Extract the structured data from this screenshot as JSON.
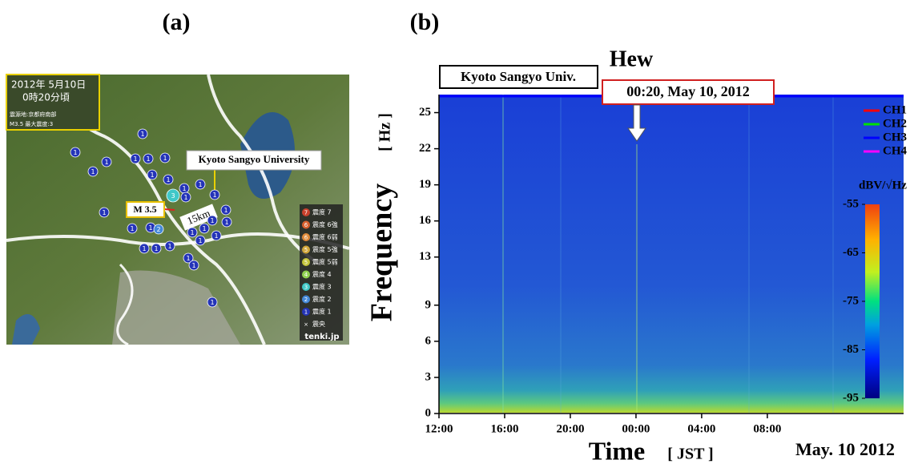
{
  "panels": {
    "a": "(a)",
    "b": "(b)"
  },
  "map": {
    "date_lines": [
      "2012年 5月10日",
      "0時20分頃"
    ],
    "info_lines": [
      "震源地:京都府南部",
      "M3.5   最大震度:3"
    ],
    "station_label": "Kyoto Sangyo University",
    "magnitude": "M 3.5",
    "distance": "15km",
    "intensities": [
      "1",
      "1",
      "1",
      "1",
      "1",
      "1",
      "1",
      "1",
      "1",
      "1",
      "1",
      "1",
      "1",
      "1",
      "1",
      "1",
      "1",
      "1",
      "1",
      "1",
      "1",
      "1",
      "1",
      "1",
      "1",
      "1",
      "1",
      "1",
      "1",
      "2",
      "3"
    ],
    "legend": [
      {
        "mark": "7",
        "label": "震度 7",
        "color": "#c8402c"
      },
      {
        "mark": "6",
        "label": "震度 6強",
        "color": "#d8602e"
      },
      {
        "mark": "6",
        "label": "震度 6弱",
        "color": "#e08a3a"
      },
      {
        "mark": "5",
        "label": "震度 5強",
        "color": "#d0a63a"
      },
      {
        "mark": "5",
        "label": "震度 5弱",
        "color": "#c4c43a"
      },
      {
        "mark": "4",
        "label": "震度 4",
        "color": "#90d050"
      },
      {
        "mark": "3",
        "label": "震度 3",
        "color": "#40c8c8"
      },
      {
        "mark": "2",
        "label": "震度 2",
        "color": "#4488d8"
      },
      {
        "mark": "1",
        "label": "震度 1",
        "color": "#2434b8"
      },
      {
        "mark": "×",
        "label": "震央",
        "color": "#222222"
      }
    ],
    "credit": "tenki.jp"
  },
  "chart_data": {
    "type": "spectrogram",
    "title": "Hew",
    "station": "Kyoto Sangyo Univ.",
    "annotation": "00:20, May 10, 2012",
    "ylabel": "Frequency",
    "yunit": "[ Hz ]",
    "xlabel": "Time",
    "xunit": "[ JST ]",
    "date": "May. 10 2012",
    "ylim": [
      0,
      26.5
    ],
    "yticks": [
      0,
      3,
      6,
      9,
      13,
      16,
      19,
      22,
      25
    ],
    "xlim": [
      12,
      40.3
    ],
    "xticks": [
      {
        "value": 12,
        "label": "12:00"
      },
      {
        "value": 16,
        "label": "16:00"
      },
      {
        "value": 20,
        "label": "20:00"
      },
      {
        "value": 24,
        "label": "00:00"
      },
      {
        "value": 28,
        "label": "04:00"
      },
      {
        "value": 32,
        "label": "08:00"
      }
    ],
    "legend": [
      {
        "name": "CH1",
        "color": "#ff0000"
      },
      {
        "name": "CH2",
        "color": "#00e000"
      },
      {
        "name": "CH3",
        "color": "#0000ff"
      },
      {
        "name": "CH4",
        "color": "#ff00ff"
      }
    ],
    "colorbar": {
      "label": "dBV/√Hz",
      "lim": [
        -95,
        -55
      ],
      "ticks": [
        -55,
        -65,
        -75,
        -85,
        -95
      ]
    }
  }
}
